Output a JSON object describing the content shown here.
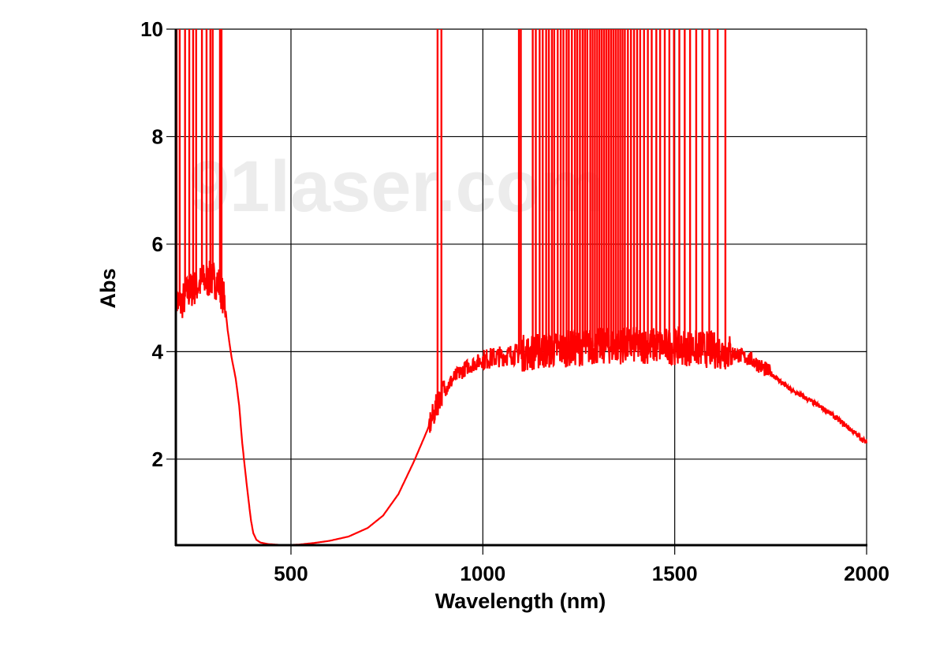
{
  "chart_data": {
    "type": "line",
    "title": "",
    "xlabel": "Wavelength (nm)",
    "ylabel": "Abs",
    "xlim": [
      200,
      2000
    ],
    "ylim": [
      0.4,
      10
    ],
    "xticks": [
      500,
      1000,
      1500,
      2000
    ],
    "yticks": [
      2,
      4,
      6,
      8,
      10
    ],
    "grid": true,
    "legend": "none",
    "line_color": "#ff0000",
    "series": [
      {
        "x": [
          200,
          210,
          230,
          250,
          270,
          290,
          310,
          320,
          328,
          335,
          345,
          356,
          365,
          373,
          382,
          390,
          396,
          402,
          410,
          420,
          440,
          480,
          520,
          560,
          600,
          650,
          700,
          740,
          780,
          820,
          850,
          870,
          880,
          890,
          900,
          930,
          960,
          1000,
          1050,
          1100,
          1200,
          1300,
          1400,
          1500,
          1600,
          1650,
          1700,
          1750,
          1800,
          1850,
          1900,
          1950,
          2000
        ],
        "y": [
          5.0,
          4.85,
          5.1,
          5.2,
          5.3,
          5.35,
          5.3,
          5.1,
          4.9,
          4.4,
          3.9,
          3.5,
          3.0,
          2.3,
          1.7,
          1.2,
          0.85,
          0.62,
          0.5,
          0.45,
          0.42,
          0.4,
          0.41,
          0.44,
          0.48,
          0.56,
          0.72,
          0.95,
          1.35,
          1.95,
          2.45,
          2.8,
          3.0,
          3.2,
          3.3,
          3.55,
          3.72,
          3.85,
          3.92,
          3.97,
          4.05,
          4.1,
          4.12,
          4.1,
          4.03,
          3.98,
          3.85,
          3.6,
          3.3,
          3.1,
          2.88,
          2.6,
          2.3
        ]
      }
    ],
    "saturated_spikes_nm": [
      202,
      210,
      224,
      235,
      245,
      253,
      268,
      280,
      290,
      296,
      315,
      319,
      882,
      892,
      1094,
      1099,
      1130,
      1138,
      1148,
      1156,
      1165,
      1172,
      1180,
      1186,
      1195,
      1203,
      1210,
      1218,
      1224,
      1232,
      1240,
      1246,
      1253,
      1260,
      1266,
      1272,
      1280,
      1286,
      1292,
      1298,
      1304,
      1310,
      1316,
      1322,
      1328,
      1334,
      1340,
      1346,
      1352,
      1358,
      1364,
      1370,
      1378,
      1386,
      1394,
      1402,
      1410,
      1420,
      1430,
      1440,
      1452,
      1462,
      1474,
      1486,
      1498,
      1512,
      1526,
      1540,
      1556,
      1572,
      1590,
      1612,
      1632
    ]
  },
  "watermark": "91laser.com"
}
